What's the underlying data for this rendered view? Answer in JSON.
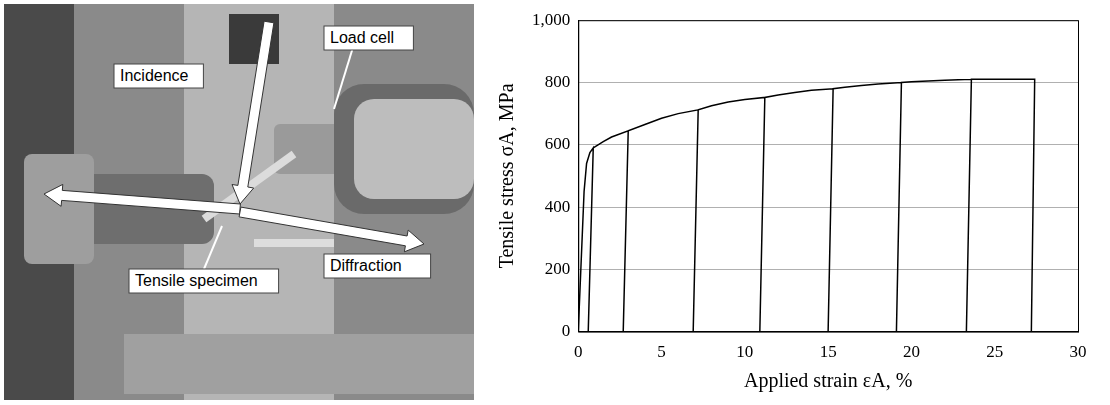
{
  "photo": {
    "labels": {
      "incidence": "Incidence",
      "load_cell": "Load cell",
      "diffraction": "Diffraction",
      "specimen": "Tensile specimen"
    }
  },
  "chart_data": {
    "type": "line",
    "x_label": "Applied strain εA, %",
    "y_label": "Tensile stress σA, MPa",
    "x": [
      0,
      0.35,
      0.5,
      0.7,
      0.9,
      0.6,
      0.9,
      1.5,
      2,
      3,
      2.7,
      3,
      4,
      5,
      6,
      7.2,
      6.9,
      7.2,
      8,
      9,
      10,
      11.2,
      10.9,
      11.2,
      12,
      13,
      14,
      15.3,
      15,
      15.3,
      16,
      17,
      18,
      19.4,
      19.1,
      19.4,
      20,
      21,
      22,
      23.6,
      23.3,
      23.6,
      24,
      25,
      26,
      27.4,
      27.2
    ],
    "values": [
      0,
      450,
      540,
      575,
      590,
      0,
      590,
      610,
      625,
      645,
      0,
      645,
      665,
      685,
      700,
      712,
      0,
      712,
      725,
      737,
      745,
      752,
      0,
      752,
      760,
      768,
      775,
      780,
      0,
      780,
      785,
      790,
      795,
      800,
      0,
      800,
      802,
      805,
      807,
      810,
      0,
      810,
      810,
      810,
      810,
      810,
      0
    ],
    "color": "#000000",
    "xlim": [
      0,
      30
    ],
    "xticks": [
      0,
      5,
      10,
      15,
      20,
      25,
      30
    ],
    "ylim": [
      0,
      1000
    ],
    "yticks": [
      0,
      200,
      400,
      600,
      800,
      1000
    ],
    "grid": true
  }
}
